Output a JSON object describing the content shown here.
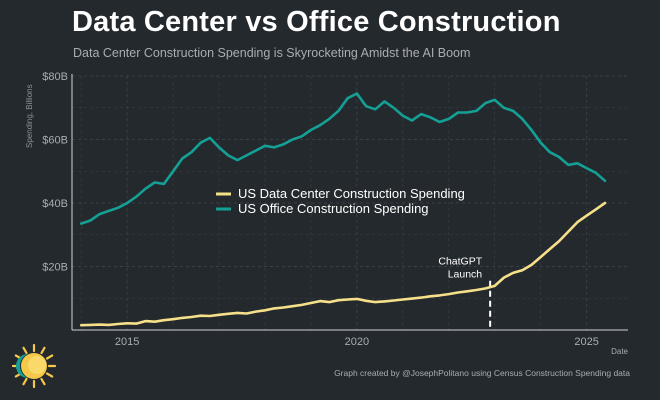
{
  "header": {
    "title": "Data Center vs Office Construction",
    "subtitle": "Data Center Construction Spending is Skyrocketing Amidst the AI Boom"
  },
  "footer": {
    "credit": "Graph created by @JosephPolitano using Census Construction Spending data",
    "logo_icon": "sun-icon"
  },
  "colors": {
    "background": "#24292e",
    "data_center": "#f7e08a",
    "office": "#14a095",
    "grid": "#3a4047",
    "axis": "#d0d4d8",
    "annotation": "#ffffff"
  },
  "chart_data": {
    "type": "line",
    "title": "Data Center vs Office Construction",
    "subtitle": "Data Center Construction Spending is Skyrocketing Amidst the AI Boom",
    "xlabel": "Date",
    "ylabel": "Spending, Billions",
    "xlim": [
      2013.8,
      2025.9
    ],
    "ylim": [
      0,
      80
    ],
    "xticks": [
      {
        "value": 2015,
        "label": "2015"
      },
      {
        "value": 2020,
        "label": "2020"
      },
      {
        "value": 2025,
        "label": "2025"
      }
    ],
    "yticks": [
      {
        "value": 20,
        "label": "$20B"
      },
      {
        "value": 40,
        "label": "$40B"
      },
      {
        "value": 60,
        "label": "$60B"
      },
      {
        "value": 80,
        "label": "$80B"
      }
    ],
    "grid": true,
    "legend_position": "center-left",
    "series": [
      {
        "name": "US Data Center Construction Spending",
        "color": "#f7e08a",
        "x": [
          2014.0,
          2014.2,
          2014.4,
          2014.6,
          2014.8,
          2015.0,
          2015.2,
          2015.4,
          2015.6,
          2015.8,
          2016.0,
          2016.2,
          2016.4,
          2016.6,
          2016.8,
          2017.0,
          2017.2,
          2017.4,
          2017.6,
          2017.8,
          2018.0,
          2018.2,
          2018.4,
          2018.6,
          2018.8,
          2019.0,
          2019.2,
          2019.4,
          2019.6,
          2019.8,
          2020.0,
          2020.2,
          2020.4,
          2020.6,
          2020.8,
          2021.0,
          2021.2,
          2021.4,
          2021.6,
          2021.8,
          2022.0,
          2022.2,
          2022.4,
          2022.6,
          2022.8,
          2023.0,
          2023.2,
          2023.4,
          2023.6,
          2023.8,
          2024.0,
          2024.2,
          2024.4,
          2024.6,
          2024.8,
          2025.0,
          2025.2,
          2025.4
        ],
        "values": [
          1.5,
          1.6,
          1.7,
          1.6,
          1.9,
          2.1,
          2.0,
          2.8,
          2.6,
          3.1,
          3.4,
          3.8,
          4.1,
          4.5,
          4.4,
          4.8,
          5.1,
          5.4,
          5.2,
          5.8,
          6.2,
          6.8,
          7.1,
          7.5,
          7.9,
          8.5,
          9.1,
          8.8,
          9.4,
          9.6,
          9.8,
          9.2,
          8.8,
          9.0,
          9.3,
          9.6,
          9.9,
          10.2,
          10.6,
          10.9,
          11.3,
          11.8,
          12.2,
          12.6,
          13.1,
          13.9,
          16.5,
          18.0,
          18.8,
          20.5,
          23.0,
          25.5,
          28.0,
          31.0,
          34.0,
          36.0,
          38.0,
          40.0
        ]
      },
      {
        "name": "US Office Construction Spending",
        "color": "#14a095",
        "x": [
          2014.0,
          2014.2,
          2014.4,
          2014.6,
          2014.8,
          2015.0,
          2015.2,
          2015.4,
          2015.6,
          2015.8,
          2016.0,
          2016.2,
          2016.4,
          2016.6,
          2016.8,
          2017.0,
          2017.2,
          2017.4,
          2017.6,
          2017.8,
          2018.0,
          2018.2,
          2018.4,
          2018.6,
          2018.8,
          2019.0,
          2019.2,
          2019.4,
          2019.6,
          2019.8,
          2020.0,
          2020.2,
          2020.4,
          2020.6,
          2020.8,
          2021.0,
          2021.2,
          2021.4,
          2021.6,
          2021.8,
          2022.0,
          2022.2,
          2022.4,
          2022.6,
          2022.8,
          2023.0,
          2023.2,
          2023.4,
          2023.6,
          2023.8,
          2024.0,
          2024.2,
          2024.4,
          2024.6,
          2024.8,
          2025.0,
          2025.2,
          2025.4
        ],
        "values": [
          33.5,
          34.5,
          36.5,
          37.5,
          38.5,
          40.0,
          42.0,
          44.5,
          46.5,
          46.0,
          50.0,
          54.0,
          56.0,
          59.0,
          60.5,
          57.5,
          55.0,
          53.5,
          55.0,
          56.5,
          58.0,
          57.5,
          58.5,
          60.0,
          61.0,
          63.0,
          64.5,
          66.5,
          69.0,
          73.0,
          74.5,
          70.5,
          69.5,
          72.0,
          70.0,
          67.5,
          66.0,
          68.0,
          67.0,
          65.5,
          66.5,
          68.5,
          68.5,
          69.0,
          71.5,
          72.5,
          70.0,
          69.0,
          66.5,
          63.0,
          59.0,
          56.0,
          54.5,
          52.0,
          52.5,
          51.0,
          49.5,
          47.0
        ]
      }
    ],
    "annotations": [
      {
        "x": 2022.9,
        "label_line1": "ChatGPT",
        "label_line2": "Launch"
      }
    ]
  }
}
